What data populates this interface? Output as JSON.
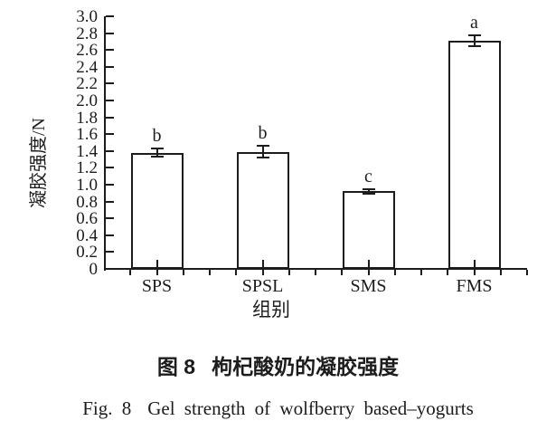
{
  "figure": {
    "caption_zh": {
      "label": "图 8",
      "text": "枸杞酸奶的凝胶强度"
    },
    "caption_en": {
      "label": "Fig. 8",
      "text": "Gel strength of wolfberry based–yogurts"
    }
  },
  "chart_data": {
    "type": "bar",
    "title": "图 8 枸杞酸奶的凝胶强度 (Fig. 8 Gel strength of wolfberry based–yogurts)",
    "categories": [
      "SPS",
      "SPSL",
      "SMS",
      "FMS"
    ],
    "values": [
      1.38,
      1.39,
      0.92,
      2.71
    ],
    "errors": [
      0.05,
      0.07,
      0.03,
      0.06
    ],
    "sig_letters": [
      "b",
      "b",
      "c",
      "a"
    ],
    "xlabel": "组别",
    "ylabel": "凝胶强度/N",
    "ylim": [
      0,
      3.0
    ],
    "ytick_step": 0.2,
    "yticks": [
      "0",
      "0.2",
      "0.4",
      "0.6",
      "0.8",
      "1.0",
      "1.2",
      "1.4",
      "1.6",
      "1.8",
      "2.0",
      "2.2",
      "2.4",
      "2.6",
      "2.8",
      "3.0"
    ],
    "grid": false,
    "legend": "none",
    "bar_fill": "#ffffff",
    "line_color": "#1c1c1c"
  }
}
